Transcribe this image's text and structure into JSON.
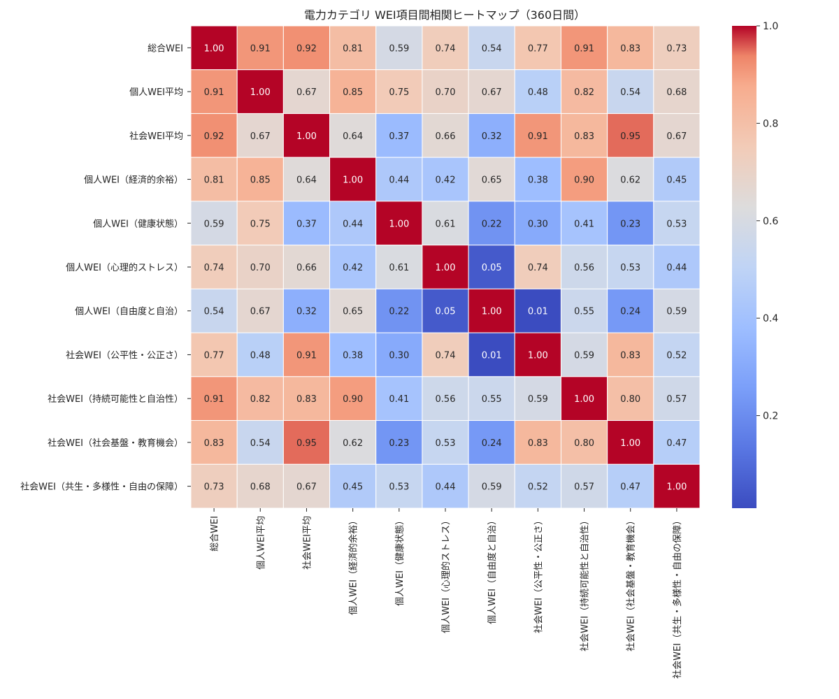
{
  "chart_data": {
    "type": "heatmap",
    "title": "電力カテゴリ WEI項目間相関ヒートマップ（360日間）",
    "labels": [
      "総合WEI",
      "個人WEI平均",
      "社会WEI平均",
      "個人WEI（経済的余裕）",
      "個人WEI（健康状態）",
      "個人WEI（心理的ストレス）",
      "個人WEI（自由度と自治）",
      "社会WEI（公平性・公正さ）",
      "社会WEI（持続可能性と自治性）",
      "社会WEI（社会基盤・教育機会）",
      "社会WEI（共生・多様性・自由の保障）"
    ],
    "matrix": [
      [
        1.0,
        0.91,
        0.92,
        0.81,
        0.59,
        0.74,
        0.54,
        0.77,
        0.91,
        0.83,
        0.73
      ],
      [
        0.91,
        1.0,
        0.67,
        0.85,
        0.75,
        0.7,
        0.67,
        0.48,
        0.82,
        0.54,
        0.68
      ],
      [
        0.92,
        0.67,
        1.0,
        0.64,
        0.37,
        0.66,
        0.32,
        0.91,
        0.83,
        0.95,
        0.67
      ],
      [
        0.81,
        0.85,
        0.64,
        1.0,
        0.44,
        0.42,
        0.65,
        0.38,
        0.9,
        0.62,
        0.45
      ],
      [
        0.59,
        0.75,
        0.37,
        0.44,
        1.0,
        0.61,
        0.22,
        0.3,
        0.41,
        0.23,
        0.53
      ],
      [
        0.74,
        0.7,
        0.66,
        0.42,
        0.61,
        1.0,
        0.05,
        0.74,
        0.56,
        0.53,
        0.44
      ],
      [
        0.54,
        0.67,
        0.32,
        0.65,
        0.22,
        0.05,
        1.0,
        0.01,
        0.55,
        0.24,
        0.59
      ],
      [
        0.77,
        0.48,
        0.91,
        0.38,
        0.3,
        0.74,
        0.01,
        1.0,
        0.59,
        0.83,
        0.52
      ],
      [
        0.91,
        0.82,
        0.83,
        0.9,
        0.41,
        0.56,
        0.55,
        0.59,
        1.0,
        0.8,
        0.57
      ],
      [
        0.83,
        0.54,
        0.95,
        0.62,
        0.23,
        0.53,
        0.24,
        0.83,
        0.8,
        1.0,
        0.47
      ],
      [
        0.73,
        0.68,
        0.67,
        0.45,
        0.53,
        0.44,
        0.59,
        0.52,
        0.57,
        0.47,
        1.0
      ]
    ],
    "vmin": 0.01,
    "vmax": 1.0,
    "colormap": "coolwarm",
    "colorbar_ticks": [
      0.2,
      0.4,
      0.6,
      0.8,
      1.0
    ],
    "colorbar_tick_labels": [
      "0.2",
      "0.4",
      "0.6",
      "0.8",
      "1.0"
    ],
    "annotation_format": "0.00"
  }
}
